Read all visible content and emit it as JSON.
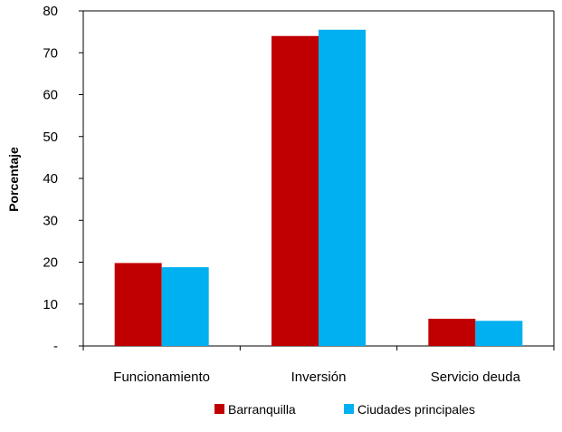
{
  "chart_data": {
    "type": "bar",
    "title": "",
    "xlabel": "",
    "ylabel": "Porcentaje",
    "ylim": [
      0,
      80
    ],
    "yticks": [
      0,
      10,
      20,
      30,
      40,
      50,
      60,
      70,
      80
    ],
    "ytick_labels": [
      "-",
      "10",
      "20",
      "30",
      "40",
      "50",
      "60",
      "70",
      "80"
    ],
    "categories": [
      "Funcionamiento",
      "Inversión",
      "Servicio deuda"
    ],
    "series": [
      {
        "name": "Barranquilla",
        "color": "#c00000",
        "values": [
          19.8,
          74.0,
          6.5
        ]
      },
      {
        "name": "Ciudades principales",
        "color": "#00b0f0",
        "values": [
          18.8,
          75.5,
          6.0
        ]
      }
    ],
    "grid": false,
    "legend_position": "bottom"
  }
}
